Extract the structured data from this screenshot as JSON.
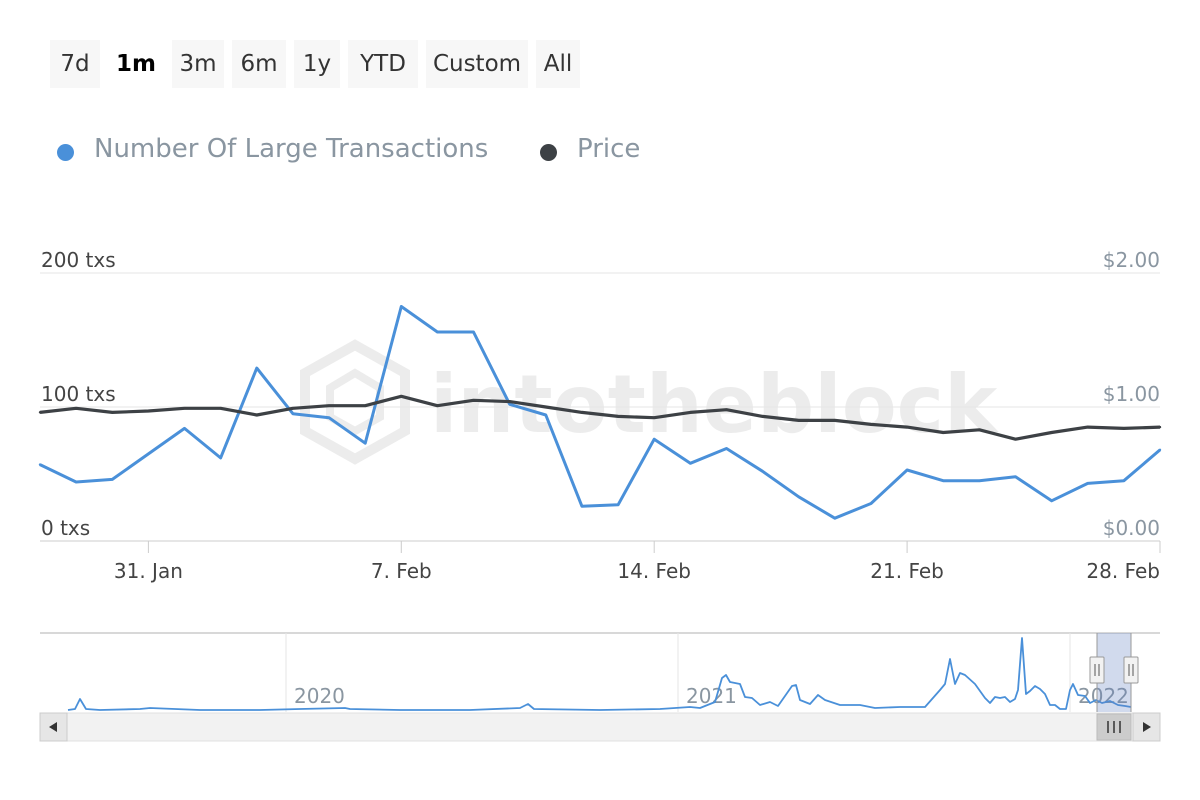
{
  "range_selector": {
    "buttons": [
      "7d",
      "1m",
      "3m",
      "6m",
      "1y",
      "YTD",
      "Custom",
      "All"
    ],
    "selected": "1m"
  },
  "legend": {
    "items": [
      {
        "label": "Number Of Large Transactions",
        "color": "#4a90d9"
      },
      {
        "label": "Price",
        "color": "#3d4145"
      }
    ]
  },
  "watermark": "intotheblock",
  "chart_data": {
    "type": "line",
    "x": [
      "2022-01-28",
      "2022-01-29",
      "2022-01-30",
      "2022-01-31",
      "2022-02-01",
      "2022-02-02",
      "2022-02-03",
      "2022-02-04",
      "2022-02-05",
      "2022-02-06",
      "2022-02-07",
      "2022-02-08",
      "2022-02-09",
      "2022-02-10",
      "2022-02-11",
      "2022-02-12",
      "2022-02-13",
      "2022-02-14",
      "2022-02-15",
      "2022-02-16",
      "2022-02-17",
      "2022-02-18",
      "2022-02-19",
      "2022-02-20",
      "2022-02-21",
      "2022-02-22",
      "2022-02-23",
      "2022-02-24",
      "2022-02-25",
      "2022-02-26",
      "2022-02-27",
      "2022-02-28"
    ],
    "x_ticks": [
      "31. Jan",
      "7. Feb",
      "14. Feb",
      "21. Feb",
      "28. Feb"
    ],
    "series": [
      {
        "name": "Number Of Large Transactions",
        "axis": "left",
        "color": "#4a90d9",
        "values": [
          57,
          44,
          46,
          65,
          84,
          62,
          129,
          95,
          92,
          73,
          175,
          156,
          156,
          102,
          94,
          26,
          27,
          76,
          58,
          69,
          52,
          33,
          17,
          28,
          53,
          45,
          45,
          48,
          30,
          43,
          45,
          68
        ]
      },
      {
        "name": "Price",
        "axis": "right",
        "color": "#3d4145",
        "values": [
          0.96,
          0.99,
          0.96,
          0.97,
          0.99,
          0.99,
          0.94,
          0.99,
          1.01,
          1.01,
          1.08,
          1.01,
          1.05,
          1.04,
          1.0,
          0.96,
          0.93,
          0.92,
          0.96,
          0.98,
          0.93,
          0.9,
          0.9,
          0.87,
          0.85,
          0.81,
          0.83,
          0.76,
          0.81,
          0.85,
          0.84,
          0.85
        ]
      }
    ],
    "y_left": {
      "ticks": [
        "0 txs",
        "100 txs",
        "200 txs"
      ],
      "lim": [
        0,
        200
      ]
    },
    "y_right": {
      "ticks": [
        "$0.00",
        "$1.00",
        "$2.00"
      ],
      "lim": [
        0,
        2
      ]
    },
    "grid": true,
    "navigator": {
      "year_labels": [
        "2020",
        "2021",
        "2022"
      ]
    }
  }
}
